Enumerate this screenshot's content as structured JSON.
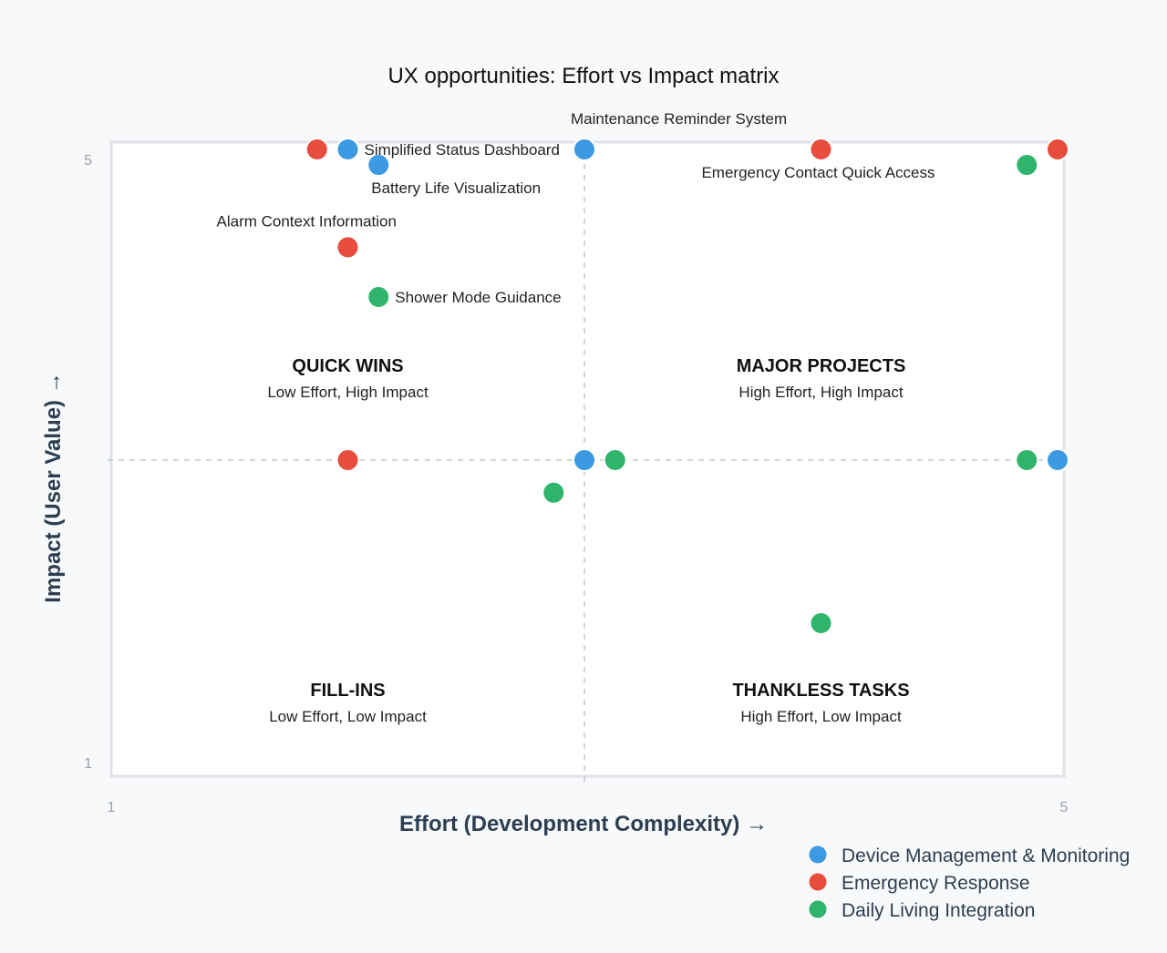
{
  "colors": {
    "device": "#3b9ae1",
    "emergency": "#e74c3c",
    "daily": "#2fb56b",
    "frame": "#dfe2e6",
    "guide": "#c4c8cc"
  },
  "chart_data": {
    "type": "scatter",
    "title": "UX opportunities: Effort vs Impact matrix",
    "xlabel": "Effort (Development Complexity) →",
    "ylabel": "Impact (User Value) →",
    "xlim": [
      1,
      5
    ],
    "ylim": [
      1,
      5
    ],
    "x_ticks": [
      "1",
      "5"
    ],
    "y_ticks": [
      "1",
      "5"
    ],
    "midlines": {
      "x": 3,
      "y": 3
    },
    "grid": false,
    "legend_position": "bottom-right",
    "quadrants": [
      {
        "id": "quick-wins",
        "title": "QUICK WINS",
        "subtitle": "Low Effort, High Impact",
        "x": 2,
        "y": 3.5
      },
      {
        "id": "major-projects",
        "title": "MAJOR PROJECTS",
        "subtitle": "High Effort, High Impact",
        "x": 4,
        "y": 3.5
      },
      {
        "id": "fill-ins",
        "title": "FILL-INS",
        "subtitle": "Low Effort, Low Impact",
        "x": 2,
        "y": 1.41
      },
      {
        "id": "thankless-tasks",
        "title": "THANKLESS TASKS",
        "subtitle": "High Effort, Low Impact",
        "x": 4,
        "y": 1.41
      }
    ],
    "series": [
      {
        "key": "device",
        "name": "Device Management & Monitoring",
        "color": "#3b9ae1",
        "points": [
          {
            "x": 2.0,
            "y": 5.0,
            "label": "Simplified Status Dashboard",
            "label_pos": "right"
          },
          {
            "x": 2.13,
            "y": 4.9,
            "label": "Battery Life Visualization",
            "label_pos": "below"
          },
          {
            "x": 3.0,
            "y": 5.0,
            "label": "Maintenance Reminder System",
            "label_pos": "above-right"
          },
          {
            "x": 3.0,
            "y": 3.0,
            "label": ""
          },
          {
            "x": 5.0,
            "y": 3.0,
            "label": ""
          }
        ]
      },
      {
        "key": "emergency",
        "name": "Emergency Response",
        "color": "#e74c3c",
        "points": [
          {
            "x": 1.87,
            "y": 5.0,
            "label": ""
          },
          {
            "x": 2.0,
            "y": 4.37,
            "label": "Alarm Context Information",
            "label_pos": "above-left"
          },
          {
            "x": 2.0,
            "y": 3.0,
            "label": ""
          },
          {
            "x": 4.0,
            "y": 5.0,
            "label": "Emergency Contact Quick Access",
            "label_pos": "below"
          },
          {
            "x": 5.0,
            "y": 5.0,
            "label": ""
          }
        ]
      },
      {
        "key": "daily",
        "name": "Daily Living Integration",
        "color": "#2fb56b",
        "points": [
          {
            "x": 2.13,
            "y": 4.05,
            "label": "Shower Mode Guidance",
            "label_pos": "right"
          },
          {
            "x": 2.87,
            "y": 2.79,
            "label": ""
          },
          {
            "x": 3.13,
            "y": 3.0,
            "label": ""
          },
          {
            "x": 4.0,
            "y": 1.95,
            "label": ""
          },
          {
            "x": 4.87,
            "y": 4.9,
            "label": ""
          },
          {
            "x": 4.87,
            "y": 3.0,
            "label": ""
          }
        ]
      }
    ]
  }
}
